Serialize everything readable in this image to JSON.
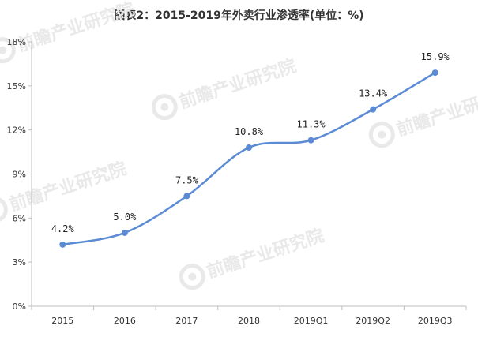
{
  "title": "图表2：2015-2019年外卖行业渗透率(单位：%)",
  "colors": {
    "line": "#5B8BD4",
    "marker": "#5B8BD4",
    "axis": "#BFBFBF",
    "text": "#333333",
    "watermark": "#E9E9E9"
  },
  "watermark": {
    "text": "前瞻产业研究院",
    "icon": "qianzhan-logo-icon"
  },
  "chart_data": {
    "type": "line",
    "title": "图表2：2015-2019年外卖行业渗透率(单位：%)",
    "categories": [
      "2015",
      "2016",
      "2017",
      "2018",
      "2019Q1",
      "2019Q2",
      "2019Q3"
    ],
    "values": [
      4.2,
      5.0,
      7.5,
      10.8,
      11.3,
      13.4,
      15.9
    ],
    "value_labels": [
      "4.2%",
      "5.0%",
      "7.5%",
      "10.8%",
      "11.3%",
      "13.4%",
      "15.9%"
    ],
    "y_ticks": [
      0,
      3,
      6,
      9,
      12,
      15,
      18
    ],
    "y_tick_labels": [
      "0%",
      "3%",
      "6%",
      "9%",
      "12%",
      "15%",
      "18%"
    ],
    "ylim": [
      0,
      18
    ],
    "grid": false,
    "smooth": true,
    "legend": "none"
  }
}
